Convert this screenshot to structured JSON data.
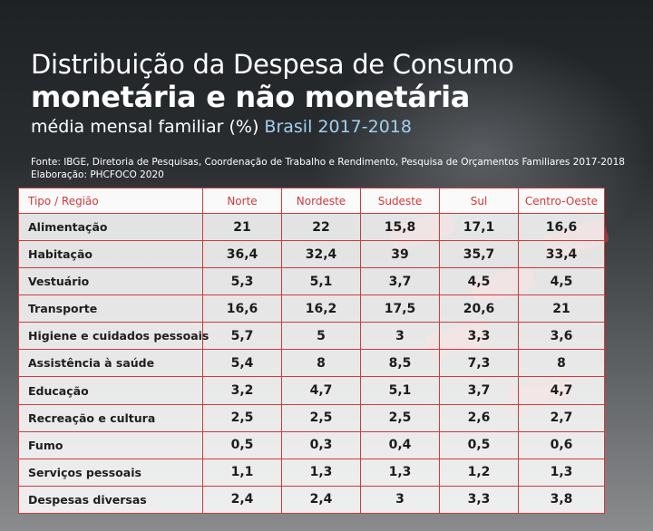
{
  "header": {
    "title_line1": "Distribuição da Despesa de Consumo",
    "title_line2": "monetária e não monetária",
    "subtitle_main": "média mensal familiar (%)",
    "subtitle_highlight": "Brasil 2017-2018"
  },
  "source": {
    "line1": "Fonte: IBGE, Diretoria de Pesquisas, Coordenação de Trabalho e Rendimento, Pesquisa de Orçamentos Familiares 2017-2018",
    "line2": "Elaboração: PHCFOCO 2020"
  },
  "colors": {
    "accent_red": "#d23a3a",
    "highlight_blue": "#9fd0f0"
  },
  "table": {
    "headers": [
      "Tipo / Região",
      "Norte",
      "Nordeste",
      "Sudeste",
      "Sul",
      "Centro-Oeste"
    ],
    "rows": [
      {
        "label": "Alimentação",
        "values": [
          "21",
          "22",
          "15,8",
          "17,1",
          "16,6"
        ]
      },
      {
        "label": "Habitação",
        "values": [
          "36,4",
          "32,4",
          "39",
          "35,7",
          "33,4"
        ]
      },
      {
        "label": "Vestuário",
        "values": [
          "5,3",
          "5,1",
          "3,7",
          "4,5",
          "4,5"
        ]
      },
      {
        "label": "Transporte",
        "values": [
          "16,6",
          "16,2",
          "17,5",
          "20,6",
          "21"
        ]
      },
      {
        "label": "Higiene e cuidados pessoais",
        "values": [
          "5,7",
          "5",
          "3",
          "3,3",
          "3,6"
        ]
      },
      {
        "label": "Assistência à saúde",
        "values": [
          "5,4",
          "8",
          "8,5",
          "7,3",
          "8"
        ]
      },
      {
        "label": "Educação",
        "values": [
          "3,2",
          "4,7",
          "5,1",
          "3,7",
          "4,7"
        ]
      },
      {
        "label": "Recreação e cultura",
        "values": [
          "2,5",
          "2,5",
          "2,5",
          "2,6",
          "2,7"
        ]
      },
      {
        "label": "Fumo",
        "values": [
          "0,5",
          "0,3",
          "0,4",
          "0,5",
          "0,6"
        ]
      },
      {
        "label": "Serviços pessoais",
        "values": [
          "1,1",
          "1,3",
          "1,3",
          "1,2",
          "1,3"
        ]
      },
      {
        "label": "Despesas diversas",
        "values": [
          "2,4",
          "2,4",
          "3",
          "3,3",
          "3,8"
        ]
      }
    ]
  }
}
